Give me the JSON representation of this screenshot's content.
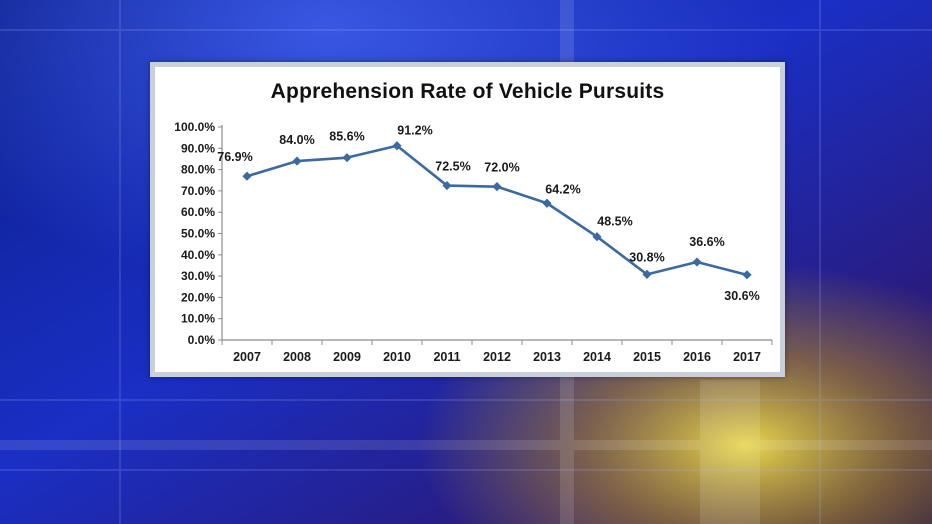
{
  "chart_data": {
    "type": "line",
    "title": "Apprehension Rate of Vehicle Pursuits",
    "xlabel": "",
    "ylabel": "",
    "categories": [
      "2007",
      "2008",
      "2009",
      "2010",
      "2011",
      "2012",
      "2013",
      "2014",
      "2015",
      "2016",
      "2017"
    ],
    "series": [
      {
        "values": [
          76.9,
          84.0,
          85.6,
          91.2,
          72.5,
          72.0,
          64.2,
          48.5,
          30.8,
          36.6,
          30.6
        ],
        "data_labels": [
          "76.9%",
          "84.0%",
          "85.6%",
          "91.2%",
          "72.5%",
          "72.0%",
          "64.2%",
          "48.5%",
          "30.8%",
          "36.6%",
          "30.6%"
        ],
        "color": "#3b6aa0",
        "marker": "diamond"
      }
    ],
    "ylim": [
      0,
      100
    ],
    "y_ticks": [
      "0.0%",
      "10.0%",
      "20.0%",
      "30.0%",
      "40.0%",
      "50.0%",
      "60.0%",
      "70.0%",
      "80.0%",
      "90.0%",
      "100.0%"
    ],
    "grid": false,
    "legend": "none"
  }
}
